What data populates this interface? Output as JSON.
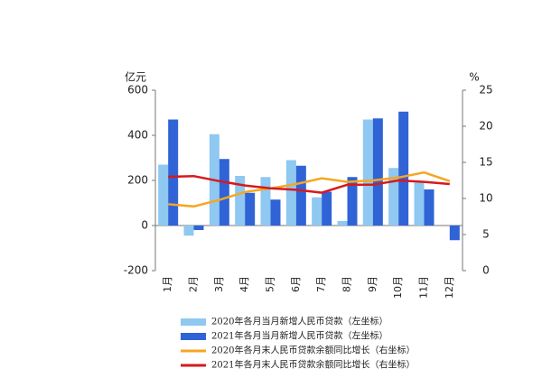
{
  "chart_data": {
    "type": "bar-line",
    "y_label": "亿元",
    "y2_label": "%",
    "categories": [
      "1月",
      "2月",
      "3月",
      "4月",
      "5月",
      "6月",
      "7月",
      "8月",
      "9月",
      "10月",
      "11月",
      "12月"
    ],
    "ylim": [
      -200,
      600
    ],
    "yticks": [
      -200,
      0,
      200,
      400,
      600
    ],
    "y2lim": [
      0,
      25
    ],
    "y2ticks": [
      0,
      5,
      10,
      15,
      20,
      25
    ],
    "series": [
      {
        "name": "2020年各月当月新增人民币贷款（左坐标）",
        "kind": "bar",
        "color": "#8fc8f0",
        "values": [
          270,
          -45,
          405,
          220,
          215,
          290,
          125,
          20,
          470,
          255,
          190,
          0
        ]
      },
      {
        "name": "2021年各月当月新增人民币贷款（左坐标）",
        "kind": "bar",
        "color": "#2f63d6",
        "values": [
          470,
          -20,
          295,
          145,
          115,
          265,
          150,
          215,
          475,
          505,
          160,
          -65
        ]
      },
      {
        "name": "2020年各月末人民币贷款余额同比增长（右坐标）",
        "kind": "line",
        "axis": "y2",
        "color": "#f5a623",
        "values": [
          9.2,
          8.9,
          9.8,
          10.9,
          11.4,
          12.0,
          12.8,
          12.3,
          12.5,
          12.9,
          13.6,
          12.4
        ]
      },
      {
        "name": "2021年各月末人民币贷款余额同比增长（右坐标）",
        "kind": "line",
        "axis": "y2",
        "color": "#d7191c",
        "values": [
          13.0,
          13.1,
          12.4,
          11.8,
          11.4,
          11.2,
          10.8,
          11.9,
          11.9,
          12.5,
          12.3,
          12.0
        ]
      }
    ]
  }
}
